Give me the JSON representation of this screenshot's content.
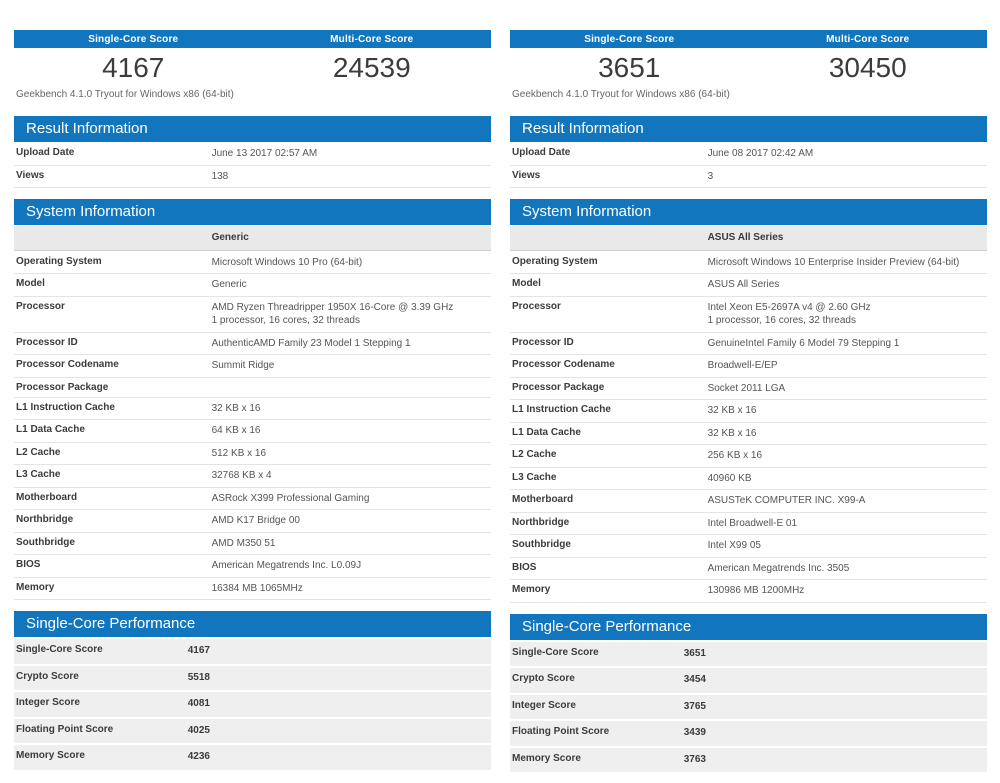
{
  "brand_color": "#1176bd",
  "panels": [
    {
      "score_header": {
        "single_label": "Single-Core Score",
        "multi_label": "Multi-Core Score"
      },
      "single_score": "4167",
      "multi_score": "24539",
      "subtitle": "Geekbench 4.1.0 Tryout for Windows x86 (64-bit)",
      "result_information": {
        "title": "Result Information",
        "rows": [
          {
            "label": "Upload Date",
            "value": "June 13 2017 02:57 AM"
          },
          {
            "label": "Views",
            "value": "138"
          }
        ]
      },
      "system_information": {
        "title": "System Information",
        "model_header": "Generic",
        "rows": [
          {
            "label": "Operating System",
            "value": "Microsoft Windows 10 Pro (64-bit)"
          },
          {
            "label": "Model",
            "value": "Generic"
          },
          {
            "label": "Processor",
            "value": [
              "AMD Ryzen Threadripper 1950X 16-Core @ 3.39 GHz",
              "1 processor, 16 cores, 32 threads"
            ]
          },
          {
            "label": "Processor ID",
            "value": "AuthenticAMD Family 23 Model 1 Stepping 1"
          },
          {
            "label": "Processor Codename",
            "value": "Summit Ridge"
          },
          {
            "label": "Processor Package",
            "value": ""
          },
          {
            "label": "L1 Instruction Cache",
            "value": "32 KB x 16"
          },
          {
            "label": "L1 Data Cache",
            "value": "64 KB x 16"
          },
          {
            "label": "L2 Cache",
            "value": "512 KB x 16"
          },
          {
            "label": "L3 Cache",
            "value": "32768 KB x 4"
          },
          {
            "label": "Motherboard",
            "value": "ASRock X399 Professional Gaming"
          },
          {
            "label": "Northbridge",
            "value": "AMD K17 Bridge 00"
          },
          {
            "label": "Southbridge",
            "value": "AMD M350 51"
          },
          {
            "label": "BIOS",
            "value": "American Megatrends Inc. L0.09J"
          },
          {
            "label": "Memory",
            "value": "16384 MB 1065MHz"
          }
        ]
      },
      "single_core_performance": {
        "title": "Single-Core Performance",
        "rows": [
          {
            "label": "Single-Core Score",
            "value": "4167"
          },
          {
            "label": "Crypto Score",
            "value": "5518"
          },
          {
            "label": "Integer Score",
            "value": "4081"
          },
          {
            "label": "Floating Point Score",
            "value": "4025"
          },
          {
            "label": "Memory Score",
            "value": "4236"
          }
        ]
      }
    },
    {
      "score_header": {
        "single_label": "Single-Core Score",
        "multi_label": "Multi-Core Score"
      },
      "single_score": "3651",
      "multi_score": "30450",
      "subtitle": "Geekbench 4.1.0 Tryout for Windows x86 (64-bit)",
      "result_information": {
        "title": "Result Information",
        "rows": [
          {
            "label": "Upload Date",
            "value": "June 08 2017 02:42 AM"
          },
          {
            "label": "Views",
            "value": "3"
          }
        ]
      },
      "system_information": {
        "title": "System Information",
        "model_header": "ASUS All Series",
        "rows": [
          {
            "label": "Operating System",
            "value": "Microsoft Windows 10 Enterprise Insider Preview (64-bit)"
          },
          {
            "label": "Model",
            "value": "ASUS All Series"
          },
          {
            "label": "Processor",
            "value": [
              "Intel Xeon E5-2697A v4 @ 2.60 GHz",
              "1 processor, 16 cores, 32 threads"
            ]
          },
          {
            "label": "Processor ID",
            "value": "GenuineIntel Family 6 Model 79 Stepping 1"
          },
          {
            "label": "Processor Codename",
            "value": "Broadwell-E/EP"
          },
          {
            "label": "Processor Package",
            "value": "Socket 2011 LGA"
          },
          {
            "label": "L1 Instruction Cache",
            "value": "32 KB x 16"
          },
          {
            "label": "L1 Data Cache",
            "value": "32 KB x 16"
          },
          {
            "label": "L2 Cache",
            "value": "256 KB x 16"
          },
          {
            "label": "L3 Cache",
            "value": "40960 KB"
          },
          {
            "label": "Motherboard",
            "value": "ASUSTeK COMPUTER INC. X99-A"
          },
          {
            "label": "Northbridge",
            "value": "Intel Broadwell-E 01"
          },
          {
            "label": "Southbridge",
            "value": "Intel X99 05"
          },
          {
            "label": "BIOS",
            "value": "American Megatrends Inc. 3505"
          },
          {
            "label": "Memory",
            "value": "130986 MB 1200MHz"
          }
        ]
      },
      "single_core_performance": {
        "title": "Single-Core Performance",
        "rows": [
          {
            "label": "Single-Core Score",
            "value": "3651"
          },
          {
            "label": "Crypto Score",
            "value": "3454"
          },
          {
            "label": "Integer Score",
            "value": "3765"
          },
          {
            "label": "Floating Point Score",
            "value": "3439"
          },
          {
            "label": "Memory Score",
            "value": "3763"
          }
        ]
      }
    }
  ]
}
